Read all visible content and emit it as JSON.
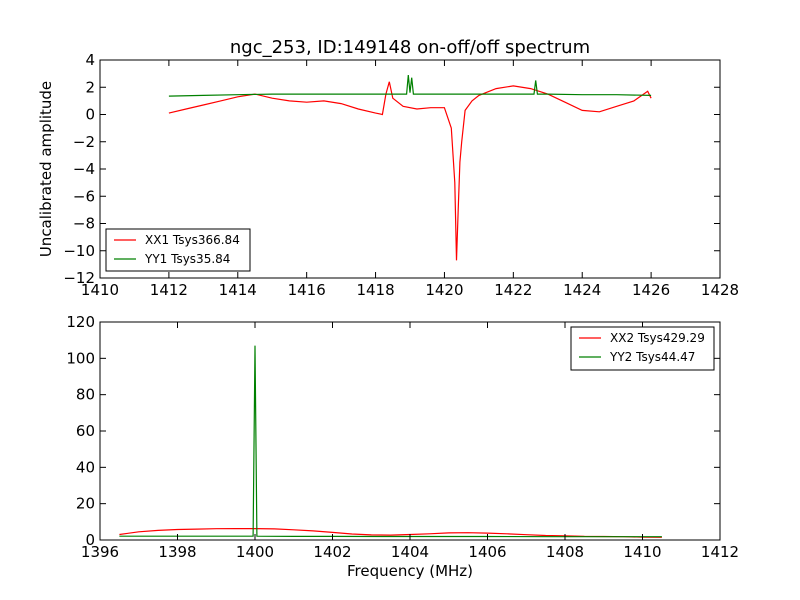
{
  "figure": {
    "title": "ngc_253, ID:149148 on-off/off spectrum"
  },
  "chart_data": [
    {
      "type": "line",
      "title": "ngc_253, ID:149148 on-off/off spectrum",
      "xlabel": "",
      "ylabel": "Uncalibrated amplitude",
      "xlim": [
        1410,
        1428
      ],
      "ylim": [
        -12,
        4
      ],
      "xticks": [
        "1410",
        "1412",
        "1414",
        "1416",
        "1418",
        "1420",
        "1422",
        "1424",
        "1426",
        "1428"
      ],
      "yticks": [
        "4",
        "2",
        "0",
        "−2",
        "−4",
        "−6",
        "−8",
        "−10",
        "−12"
      ],
      "xtick_values": [
        1410,
        1412,
        1414,
        1416,
        1418,
        1420,
        1422,
        1424,
        1426,
        1428
      ],
      "ytick_values": [
        4,
        2,
        0,
        -2,
        -4,
        -6,
        -8,
        -10,
        -12
      ],
      "legend_position": "lower-left",
      "series": [
        {
          "name": "XX1 Tsys366.84",
          "color": "#ff0000",
          "x": [
            1412.0,
            1412.5,
            1413.0,
            1413.5,
            1414.0,
            1414.5,
            1415.0,
            1415.5,
            1416.0,
            1416.5,
            1417.0,
            1417.5,
            1418.0,
            1418.2,
            1418.3,
            1418.4,
            1418.5,
            1418.8,
            1419.2,
            1419.6,
            1420.0,
            1420.2,
            1420.3,
            1420.35,
            1420.4,
            1420.45,
            1420.5,
            1420.6,
            1420.8,
            1421.0,
            1421.5,
            1422.0,
            1422.5,
            1423.0,
            1423.5,
            1424.0,
            1424.5,
            1425.0,
            1425.5,
            1425.9,
            1426.0
          ],
          "y": [
            0.1,
            0.4,
            0.7,
            1.0,
            1.3,
            1.5,
            1.2,
            1.0,
            0.9,
            1.0,
            0.8,
            0.4,
            0.1,
            0.0,
            1.5,
            2.4,
            1.2,
            0.6,
            0.4,
            0.5,
            0.5,
            -1.0,
            -5.0,
            -10.7,
            -7.0,
            -3.5,
            -2.0,
            0.3,
            1.0,
            1.4,
            1.9,
            2.1,
            1.9,
            1.5,
            0.9,
            0.3,
            0.2,
            0.6,
            1.0,
            1.7,
            1.2
          ]
        },
        {
          "name": "YY1 Tsys35.84",
          "color": "#008000",
          "x": [
            1412.0,
            1413.0,
            1414.0,
            1415.0,
            1416.0,
            1417.0,
            1418.0,
            1418.9,
            1418.95,
            1419.0,
            1419.05,
            1419.1,
            1420.0,
            1421.0,
            1422.0,
            1422.6,
            1422.65,
            1422.7,
            1423.0,
            1424.0,
            1425.0,
            1426.0
          ],
          "y": [
            1.35,
            1.4,
            1.45,
            1.5,
            1.5,
            1.5,
            1.5,
            1.5,
            2.9,
            1.6,
            2.7,
            1.5,
            1.5,
            1.5,
            1.5,
            1.5,
            2.5,
            1.5,
            1.5,
            1.45,
            1.45,
            1.4
          ]
        }
      ]
    },
    {
      "type": "line",
      "title": "",
      "xlabel": "Frequency (MHz)",
      "ylabel": "",
      "xlim": [
        1396,
        1412
      ],
      "ylim": [
        0,
        120
      ],
      "xticks": [
        "1396",
        "1398",
        "1400",
        "1402",
        "1404",
        "1406",
        "1408",
        "1410",
        "1412"
      ],
      "yticks": [
        "120",
        "100",
        "80",
        "60",
        "40",
        "20",
        "0"
      ],
      "xtick_values": [
        1396,
        1398,
        1400,
        1402,
        1404,
        1406,
        1408,
        1410,
        1412
      ],
      "ytick_values": [
        120,
        100,
        80,
        60,
        40,
        20,
        0
      ],
      "legend_position": "upper-right",
      "series": [
        {
          "name": "XX2 Tsys429.29",
          "color": "#ff0000",
          "x": [
            1396.5,
            1397.0,
            1397.5,
            1398.0,
            1398.5,
            1399.0,
            1399.5,
            1400.0,
            1400.5,
            1401.0,
            1401.5,
            1402.0,
            1402.5,
            1403.0,
            1403.5,
            1404.0,
            1404.5,
            1405.0,
            1405.5,
            1406.0,
            1406.5,
            1407.0,
            1407.5,
            1408.0,
            1408.5,
            1409.0,
            1409.5,
            1410.0,
            1410.5
          ],
          "y": [
            3.0,
            4.5,
            5.3,
            5.8,
            6.0,
            6.2,
            6.3,
            6.3,
            6.1,
            5.6,
            5.0,
            4.2,
            3.3,
            2.8,
            2.7,
            3.0,
            3.4,
            3.9,
            4.0,
            3.8,
            3.4,
            2.9,
            2.5,
            2.3,
            2.0,
            1.9,
            1.8,
            1.6,
            1.5
          ]
        },
        {
          "name": "YY2 Tsys44.47",
          "color": "#008000",
          "x": [
            1396.5,
            1398.0,
            1399.95,
            1400.0,
            1400.05,
            1401.0,
            1402.0,
            1404.0,
            1406.0,
            1408.0,
            1410.0,
            1410.5
          ],
          "y": [
            2.1,
            2.1,
            2.1,
            107.0,
            2.1,
            2.0,
            2.0,
            1.9,
            1.9,
            1.8,
            1.8,
            1.8
          ]
        }
      ]
    }
  ]
}
